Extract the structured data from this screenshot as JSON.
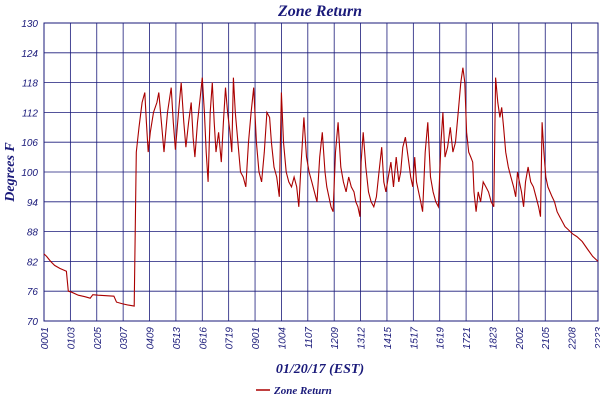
{
  "chart_data": {
    "type": "line",
    "title": "Zone Return",
    "xlabel": "01/20/17 (EST)",
    "ylabel": "Degrees F",
    "ylim": [
      70,
      130
    ],
    "yticks": [
      "70",
      "76",
      "82",
      "88",
      "94",
      "100",
      "106",
      "112",
      "118",
      "124",
      "130"
    ],
    "xticks": [
      "0001",
      "0103",
      "0205",
      "0307",
      "0409",
      "0513",
      "0616",
      "0719",
      "0901",
      "1004",
      "1107",
      "1209",
      "1312",
      "1415",
      "1517",
      "1619",
      "1721",
      "1823",
      "2002",
      "2105",
      "2208",
      "2223"
    ],
    "legend": {
      "position": "bottom-left",
      "label": "Zone Return"
    },
    "grid": true,
    "colors": {
      "series": "#aa0000",
      "grid": "#1a1a7a",
      "text": "#1a1a7a"
    },
    "series": [
      {
        "name": "Zone Return",
        "x_index_max": 21,
        "points": [
          [
            0.0,
            83.5
          ],
          [
            0.1,
            83.0
          ],
          [
            0.25,
            82.0
          ],
          [
            0.4,
            81.2
          ],
          [
            0.6,
            80.6
          ],
          [
            0.85,
            80.0
          ],
          [
            0.92,
            76.0
          ],
          [
            1.05,
            75.8
          ],
          [
            1.3,
            75.2
          ],
          [
            1.55,
            74.9
          ],
          [
            1.75,
            74.6
          ],
          [
            1.85,
            75.3
          ],
          [
            2.05,
            75.2
          ],
          [
            2.35,
            75.1
          ],
          [
            2.65,
            75.0
          ],
          [
            2.75,
            73.8
          ],
          [
            2.95,
            73.5
          ],
          [
            3.2,
            73.2
          ],
          [
            3.42,
            73.0
          ],
          [
            3.5,
            104.0
          ],
          [
            3.6,
            109.0
          ],
          [
            3.72,
            114.0
          ],
          [
            3.82,
            116.0
          ],
          [
            3.88,
            110.0
          ],
          [
            3.95,
            104.0
          ],
          [
            4.03,
            108.0
          ],
          [
            4.15,
            112.0
          ],
          [
            4.28,
            114.0
          ],
          [
            4.35,
            116.0
          ],
          [
            4.45,
            110.0
          ],
          [
            4.55,
            104.0
          ],
          [
            4.68,
            112.0
          ],
          [
            4.82,
            117.0
          ],
          [
            4.9,
            110.0
          ],
          [
            4.98,
            104.5
          ],
          [
            5.1,
            112.0
          ],
          [
            5.2,
            118.0
          ],
          [
            5.3,
            110.0
          ],
          [
            5.38,
            105.0
          ],
          [
            5.48,
            110.0
          ],
          [
            5.58,
            114.0
          ],
          [
            5.65,
            107.0
          ],
          [
            5.72,
            103.0
          ],
          [
            5.82,
            110.0
          ],
          [
            5.92,
            115.0
          ],
          [
            6.0,
            119.0
          ],
          [
            6.08,
            112.0
          ],
          [
            6.15,
            104.0
          ],
          [
            6.22,
            98.0
          ],
          [
            6.3,
            112.0
          ],
          [
            6.38,
            118.0
          ],
          [
            6.45,
            110.0
          ],
          [
            6.52,
            104.0
          ],
          [
            6.62,
            108.0
          ],
          [
            6.72,
            102.0
          ],
          [
            6.8,
            110.0
          ],
          [
            6.88,
            117.0
          ],
          [
            6.96,
            112.0
          ],
          [
            7.05,
            108.0
          ],
          [
            7.12,
            104.0
          ],
          [
            7.18,
            119.0
          ],
          [
            7.25,
            112.0
          ],
          [
            7.35,
            106.0
          ],
          [
            7.45,
            100.0
          ],
          [
            7.55,
            99.0
          ],
          [
            7.65,
            97.0
          ],
          [
            7.75,
            106.0
          ],
          [
            7.85,
            112.0
          ],
          [
            7.95,
            117.0
          ],
          [
            8.05,
            106.0
          ],
          [
            8.15,
            100.0
          ],
          [
            8.25,
            98.0
          ],
          [
            8.35,
            104.0
          ],
          [
            8.45,
            112.0
          ],
          [
            8.55,
            111.0
          ],
          [
            8.62,
            106.0
          ],
          [
            8.72,
            101.0
          ],
          [
            8.82,
            99.0
          ],
          [
            8.92,
            95.0
          ],
          [
            9.0,
            116.0
          ],
          [
            9.08,
            106.0
          ],
          [
            9.18,
            100.0
          ],
          [
            9.28,
            98.0
          ],
          [
            9.38,
            97.0
          ],
          [
            9.48,
            99.0
          ],
          [
            9.58,
            97.0
          ],
          [
            9.66,
            93.0
          ],
          [
            9.75,
            102.0
          ],
          [
            9.85,
            111.0
          ],
          [
            9.95,
            103.0
          ],
          [
            10.05,
            100.0
          ],
          [
            10.15,
            98.0
          ],
          [
            10.25,
            96.0
          ],
          [
            10.35,
            94.0
          ],
          [
            10.45,
            103.0
          ],
          [
            10.55,
            108.0
          ],
          [
            10.65,
            100.0
          ],
          [
            10.72,
            97.0
          ],
          [
            10.8,
            95.0
          ],
          [
            10.88,
            93.0
          ],
          [
            10.96,
            92.0
          ],
          [
            11.05,
            104.0
          ],
          [
            11.15,
            110.0
          ],
          [
            11.25,
            101.0
          ],
          [
            11.35,
            98.0
          ],
          [
            11.45,
            96.0
          ],
          [
            11.55,
            99.0
          ],
          [
            11.65,
            97.0
          ],
          [
            11.75,
            96.0
          ],
          [
            11.82,
            94.0
          ],
          [
            11.9,
            93.0
          ],
          [
            11.98,
            91.0
          ],
          [
            12.02,
            102.0
          ],
          [
            12.1,
            108.0
          ],
          [
            12.2,
            101.0
          ],
          [
            12.3,
            96.0
          ],
          [
            12.4,
            94.0
          ],
          [
            12.5,
            93.0
          ],
          [
            12.6,
            95.0
          ],
          [
            12.7,
            100.0
          ],
          [
            12.8,
            105.0
          ],
          [
            12.88,
            98.0
          ],
          [
            12.96,
            96.0
          ],
          [
            13.05,
            99.0
          ],
          [
            13.15,
            102.0
          ],
          [
            13.25,
            97.0
          ],
          [
            13.35,
            103.0
          ],
          [
            13.45,
            98.0
          ],
          [
            13.52,
            100.0
          ],
          [
            13.6,
            105.0
          ],
          [
            13.7,
            107.0
          ],
          [
            13.8,
            103.0
          ],
          [
            13.9,
            99.0
          ],
          [
            13.98,
            97.0
          ],
          [
            14.05,
            103.0
          ],
          [
            14.12,
            98.0
          ],
          [
            14.2,
            96.0
          ],
          [
            14.28,
            94.0
          ],
          [
            14.35,
            92.0
          ],
          [
            14.45,
            104.0
          ],
          [
            14.55,
            110.0
          ],
          [
            14.65,
            99.0
          ],
          [
            14.75,
            96.0
          ],
          [
            14.85,
            94.0
          ],
          [
            14.95,
            93.0
          ],
          [
            15.05,
            106.0
          ],
          [
            15.12,
            112.0
          ],
          [
            15.2,
            103.0
          ],
          [
            15.3,
            105.0
          ],
          [
            15.4,
            109.0
          ],
          [
            15.5,
            104.0
          ],
          [
            15.6,
            106.0
          ],
          [
            15.7,
            112.0
          ],
          [
            15.8,
            118.0
          ],
          [
            15.88,
            121.0
          ],
          [
            15.95,
            118.0
          ],
          [
            16.02,
            108.0
          ],
          [
            16.1,
            104.0
          ],
          [
            16.18,
            103.0
          ],
          [
            16.25,
            102.0
          ],
          [
            16.3,
            96.0
          ],
          [
            16.38,
            92.0
          ],
          [
            16.46,
            96.0
          ],
          [
            16.55,
            94.0
          ],
          [
            16.65,
            98.0
          ],
          [
            16.75,
            97.0
          ],
          [
            16.85,
            96.0
          ],
          [
            16.95,
            94.0
          ],
          [
            17.05,
            93.0
          ],
          [
            17.12,
            119.0
          ],
          [
            17.2,
            114.0
          ],
          [
            17.28,
            111.0
          ],
          [
            17.35,
            113.0
          ],
          [
            17.42,
            109.0
          ],
          [
            17.5,
            104.0
          ],
          [
            17.6,
            101.0
          ],
          [
            17.7,
            99.0
          ],
          [
            17.8,
            97.0
          ],
          [
            17.88,
            95.0
          ],
          [
            17.95,
            100.0
          ],
          [
            18.02,
            98.0
          ],
          [
            18.1,
            96.0
          ],
          [
            18.18,
            93.0
          ],
          [
            18.25,
            98.0
          ],
          [
            18.35,
            101.0
          ],
          [
            18.45,
            98.0
          ],
          [
            18.55,
            97.0
          ],
          [
            18.65,
            95.0
          ],
          [
            18.75,
            93.0
          ],
          [
            18.82,
            91.0
          ],
          [
            18.88,
            110.0
          ],
          [
            18.95,
            104.0
          ],
          [
            19.02,
            99.0
          ],
          [
            19.1,
            97.0
          ],
          [
            19.18,
            96.0
          ],
          [
            19.26,
            95.0
          ],
          [
            19.35,
            94.0
          ],
          [
            19.45,
            92.0
          ],
          [
            19.55,
            91.0
          ],
          [
            19.65,
            90.0
          ],
          [
            19.75,
            89.0
          ],
          [
            19.85,
            88.5
          ],
          [
            19.95,
            88.0
          ],
          [
            20.05,
            87.5
          ],
          [
            20.2,
            87.0
          ],
          [
            20.4,
            86.0
          ],
          [
            20.6,
            84.5
          ],
          [
            20.8,
            83.0
          ],
          [
            21.0,
            82.0
          ]
        ]
      }
    ]
  }
}
